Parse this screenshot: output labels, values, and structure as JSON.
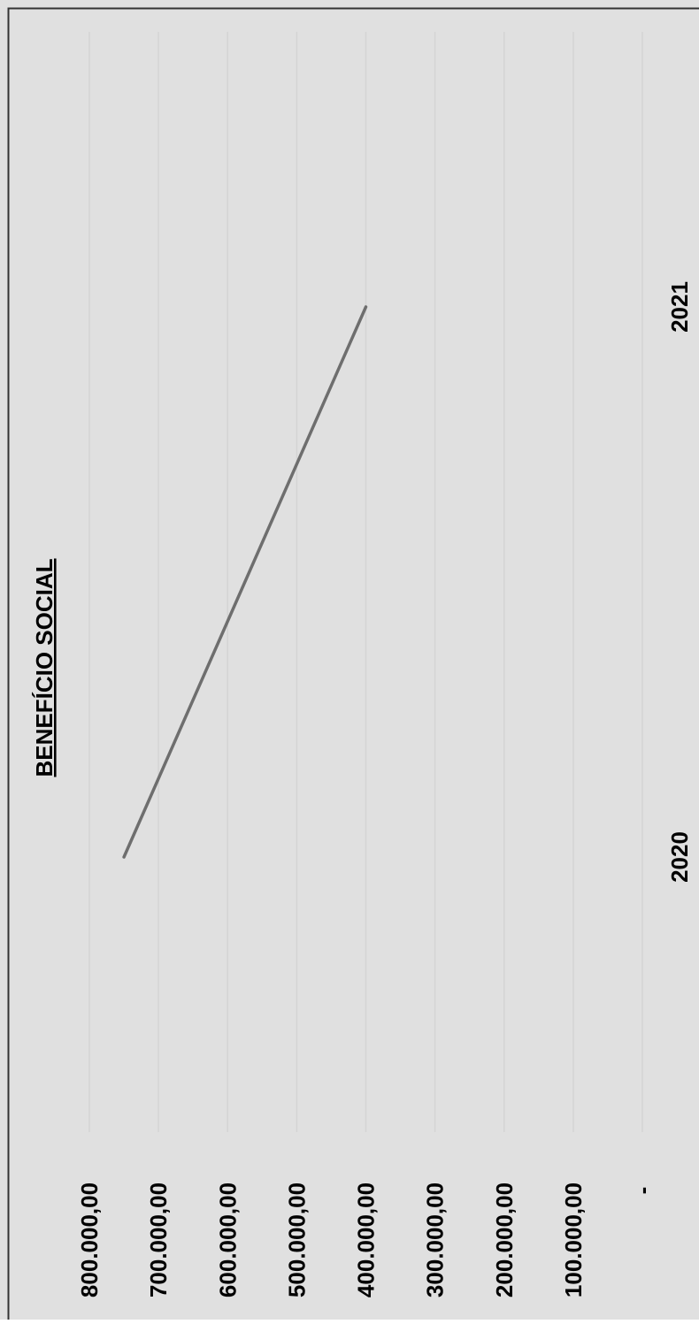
{
  "chart_data": {
    "type": "line",
    "title": "BENEFÍCIO SOCIAL",
    "categories": [
      "2020",
      "2021"
    ],
    "series": [
      {
        "values": [
          750000,
          400000
        ]
      }
    ],
    "y_ticks": [
      "-",
      "100.000,00",
      "200.000,00",
      "300.000,00",
      "400.000,00",
      "500.000,00",
      "600.000,00",
      "700.000,00",
      "800.000,00"
    ],
    "ylim": [
      0,
      800000
    ],
    "grid": true,
    "orientation": "rotated 90° clockwise"
  },
  "colors": {
    "background": "#e0e0e0",
    "border": "#333333",
    "gridline": "#d4d4d4",
    "line": "#6e6e6e",
    "text": "#000000"
  }
}
